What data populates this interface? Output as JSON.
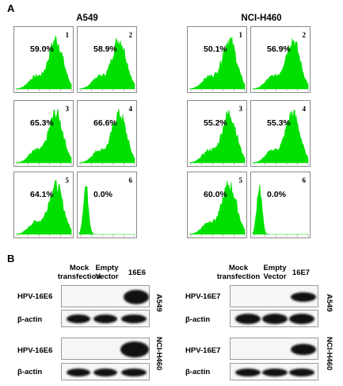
{
  "panel_a_label": "A",
  "panel_b_label": "B",
  "cell_lines": [
    "A549",
    "NCI-H460"
  ],
  "histograms": {
    "a549": [
      {
        "num": "1",
        "pct": "59.0%",
        "level": 0.59
      },
      {
        "num": "2",
        "pct": "58.9%",
        "level": 0.589
      },
      {
        "num": "3",
        "pct": "65.3%",
        "level": 0.653
      },
      {
        "num": "4",
        "pct": "66.6%",
        "level": 0.666
      },
      {
        "num": "5",
        "pct": "64.1%",
        "level": 0.641
      },
      {
        "num": "6",
        "pct": "0.0%",
        "level": 0.0
      }
    ],
    "h460": [
      {
        "num": "1",
        "pct": "50.1%",
        "level": 0.501
      },
      {
        "num": "2",
        "pct": "56.9%",
        "level": 0.569
      },
      {
        "num": "3",
        "pct": "55.2%",
        "level": 0.552
      },
      {
        "num": "4",
        "pct": "55.3%",
        "level": 0.553
      },
      {
        "num": "5",
        "pct": "60.0%",
        "level": 0.6
      },
      {
        "num": "6",
        "pct": "0.0%",
        "level": 0.0
      }
    ]
  },
  "hist_color": "#00e000",
  "blots": {
    "lanes_left": [
      "Mock transfection",
      "Empty Vector",
      "16E6"
    ],
    "lanes_right": [
      "Mock transfection",
      "Empty Vector",
      "16E7"
    ],
    "mock_line1": "Mock",
    "mock_line2": "transfection",
    "empty_line1": "Empty",
    "empty_line2": "Vector",
    "lane_e6": "16E6",
    "lane_e7": "16E7",
    "row_e6": "HPV-16E6",
    "row_e7": "HPV-16E7",
    "row_actin": "β-actin",
    "side_a549": "A549",
    "side_h460": "NCI-H460"
  }
}
